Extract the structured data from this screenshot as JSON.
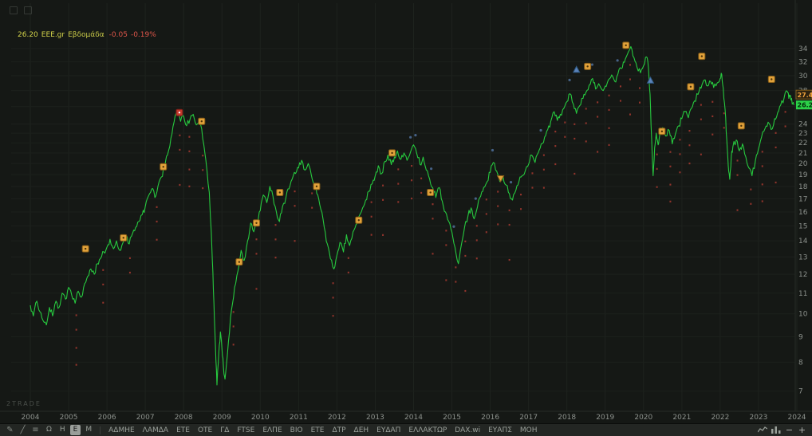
{
  "window": {
    "watermark": "2TRADE"
  },
  "legend": {
    "price": "26.20",
    "symbol": "EEE.gr",
    "timeframe": "Εβδομάδα",
    "change": "-0.05",
    "change_pct": "-0.19%"
  },
  "colors": {
    "background": "#151815",
    "grid": "#1e231e",
    "axis_text": "#8d928d",
    "line": "#27c93f",
    "last_tag_bg": "#2bd148",
    "alert_text": "#f0a23c",
    "sell_tick": "#a83a30",
    "blue_dot": "#5b82b8",
    "event_fill": "#e2a23b",
    "event_alert": "#c4382c"
  },
  "toolbar": {
    "tools": [
      {
        "name": "pencil-icon",
        "glyph": "✎"
      },
      {
        "name": "trendline-icon",
        "glyph": "╱"
      },
      {
        "name": "list-icon",
        "glyph": "≡"
      }
    ],
    "timeframes": [
      {
        "label": "Ω",
        "active": false
      },
      {
        "label": "H",
        "active": false
      },
      {
        "label": "E",
        "active": true
      },
      {
        "label": "M",
        "active": false
      }
    ],
    "tickers": [
      "ΑΔΜΗΕ",
      "ΛΑΜΔΑ",
      "ΕΤΕ",
      "ΟΤΕ",
      "ΓΔ",
      "FTSE",
      "ΕΛΠΕ",
      "ΒΙΟ",
      "ΕΤΕ",
      "ΔΤΡ",
      "ΔΕΗ",
      "ΕΥΔΑΠ",
      "ΕΛΛΑΚΤΩΡ",
      "DAX.wi",
      "ΕΥΑΠΣ",
      "ΜΟΗ"
    ],
    "zoom_out": "−",
    "zoom_in": "+"
  },
  "chart_data": {
    "type": "line",
    "title": "EEE.gr Εβδομάδα",
    "symbol": "EEE.gr",
    "timeframe": "Εβδομάδα",
    "last_price": 26.2,
    "alert_price": 27.44,
    "line_color": "#27c93f",
    "x_axis": {
      "start": 2004,
      "end": 2024,
      "label": ""
    },
    "y_axis": {
      "scale": "log",
      "levels": [
        34,
        32,
        30,
        28,
        26,
        24,
        23,
        22,
        21,
        20,
        19,
        18,
        17,
        16,
        15,
        14,
        13,
        12,
        11,
        10,
        9,
        8,
        7
      ]
    },
    "series": [
      [
        2004.0,
        10.4
      ],
      [
        2004.08,
        9.9
      ],
      [
        2004.17,
        10.6
      ],
      [
        2004.25,
        10.1
      ],
      [
        2004.33,
        9.7
      ],
      [
        2004.42,
        9.5
      ],
      [
        2004.5,
        10.3
      ],
      [
        2004.58,
        9.9
      ],
      [
        2004.67,
        10.6
      ],
      [
        2004.75,
        10.3
      ],
      [
        2004.83,
        11.0
      ],
      [
        2004.92,
        10.7
      ],
      [
        2005.0,
        11.3
      ],
      [
        2005.08,
        10.9
      ],
      [
        2005.17,
        10.5
      ],
      [
        2005.25,
        11.1
      ],
      [
        2005.33,
        10.8
      ],
      [
        2005.42,
        11.5
      ],
      [
        2005.5,
        11.9
      ],
      [
        2005.58,
        12.3
      ],
      [
        2005.67,
        12.0
      ],
      [
        2005.75,
        12.6
      ],
      [
        2005.83,
        12.9
      ],
      [
        2005.92,
        13.3
      ],
      [
        2006.0,
        13.6
      ],
      [
        2006.08,
        14.1
      ],
      [
        2006.17,
        13.5
      ],
      [
        2006.25,
        14.0
      ],
      [
        2006.33,
        13.4
      ],
      [
        2006.42,
        13.9
      ],
      [
        2006.5,
        14.3
      ],
      [
        2006.58,
        13.8
      ],
      [
        2006.67,
        14.5
      ],
      [
        2006.75,
        14.9
      ],
      [
        2006.83,
        15.3
      ],
      [
        2006.92,
        15.8
      ],
      [
        2007.0,
        16.4
      ],
      [
        2007.08,
        17.2
      ],
      [
        2007.17,
        17.8
      ],
      [
        2007.25,
        17.1
      ],
      [
        2007.33,
        18.0
      ],
      [
        2007.42,
        18.8
      ],
      [
        2007.5,
        19.6
      ],
      [
        2007.58,
        20.8
      ],
      [
        2007.67,
        22.5
      ],
      [
        2007.75,
        24.2
      ],
      [
        2007.83,
        25.6
      ],
      [
        2007.92,
        24.3
      ],
      [
        2008.0,
        24.9
      ],
      [
        2008.08,
        23.8
      ],
      [
        2008.17,
        24.6
      ],
      [
        2008.25,
        25.1
      ],
      [
        2008.33,
        23.9
      ],
      [
        2008.42,
        24.6
      ],
      [
        2008.5,
        22.4
      ],
      [
        2008.58,
        20.3
      ],
      [
        2008.67,
        17.5
      ],
      [
        2008.75,
        12.8
      ],
      [
        2008.79,
        10.5
      ],
      [
        2008.83,
        8.6
      ],
      [
        2008.87,
        7.2
      ],
      [
        2008.92,
        8.4
      ],
      [
        2008.96,
        9.2
      ],
      [
        2009.0,
        8.5
      ],
      [
        2009.04,
        7.8
      ],
      [
        2009.08,
        7.4
      ],
      [
        2009.17,
        8.8
      ],
      [
        2009.25,
        10.2
      ],
      [
        2009.33,
        11.3
      ],
      [
        2009.42,
        12.2
      ],
      [
        2009.5,
        13.4
      ],
      [
        2009.58,
        12.8
      ],
      [
        2009.67,
        14.0
      ],
      [
        2009.75,
        15.2
      ],
      [
        2009.83,
        14.6
      ],
      [
        2009.92,
        15.4
      ],
      [
        2010.0,
        16.1
      ],
      [
        2010.08,
        17.3
      ],
      [
        2010.17,
        16.7
      ],
      [
        2010.25,
        18.0
      ],
      [
        2010.33,
        17.2
      ],
      [
        2010.42,
        16.0
      ],
      [
        2010.5,
        15.3
      ],
      [
        2010.58,
        16.4
      ],
      [
        2010.67,
        17.1
      ],
      [
        2010.75,
        17.8
      ],
      [
        2010.83,
        18.6
      ],
      [
        2010.92,
        19.1
      ],
      [
        2011.0,
        19.6
      ],
      [
        2011.08,
        20.3
      ],
      [
        2011.17,
        19.4
      ],
      [
        2011.25,
        20.0
      ],
      [
        2011.33,
        19.0
      ],
      [
        2011.42,
        18.2
      ],
      [
        2011.5,
        17.3
      ],
      [
        2011.58,
        16.2
      ],
      [
        2011.67,
        14.9
      ],
      [
        2011.75,
        13.8
      ],
      [
        2011.83,
        12.9
      ],
      [
        2011.92,
        12.3
      ],
      [
        2012.0,
        13.1
      ],
      [
        2012.08,
        13.9
      ],
      [
        2012.17,
        13.3
      ],
      [
        2012.25,
        14.4
      ],
      [
        2012.33,
        13.7
      ],
      [
        2012.42,
        14.6
      ],
      [
        2012.5,
        15.1
      ],
      [
        2012.58,
        15.7
      ],
      [
        2012.67,
        16.3
      ],
      [
        2012.75,
        16.9
      ],
      [
        2012.83,
        17.6
      ],
      [
        2012.92,
        18.2
      ],
      [
        2013.0,
        18.9
      ],
      [
        2013.08,
        19.8
      ],
      [
        2013.17,
        19.1
      ],
      [
        2013.25,
        20.2
      ],
      [
        2013.33,
        20.8
      ],
      [
        2013.42,
        19.9
      ],
      [
        2013.5,
        20.6
      ],
      [
        2013.58,
        21.2
      ],
      [
        2013.67,
        20.4
      ],
      [
        2013.75,
        21.0
      ],
      [
        2013.83,
        20.3
      ],
      [
        2013.92,
        21.1
      ],
      [
        2014.0,
        21.8
      ],
      [
        2014.08,
        21.0
      ],
      [
        2014.17,
        19.9
      ],
      [
        2014.25,
        20.6
      ],
      [
        2014.33,
        19.4
      ],
      [
        2014.42,
        18.6
      ],
      [
        2014.5,
        17.9
      ],
      [
        2014.58,
        17.1
      ],
      [
        2014.67,
        17.9
      ],
      [
        2014.75,
        16.8
      ],
      [
        2014.83,
        16.0
      ],
      [
        2014.92,
        15.3
      ],
      [
        2015.0,
        14.6
      ],
      [
        2015.08,
        13.6
      ],
      [
        2015.17,
        12.6
      ],
      [
        2015.25,
        13.8
      ],
      [
        2015.33,
        14.9
      ],
      [
        2015.42,
        15.7
      ],
      [
        2015.5,
        16.3
      ],
      [
        2015.58,
        15.5
      ],
      [
        2015.67,
        16.4
      ],
      [
        2015.75,
        17.2
      ],
      [
        2015.83,
        17.9
      ],
      [
        2015.92,
        18.4
      ],
      [
        2016.0,
        19.2
      ],
      [
        2016.08,
        20.1
      ],
      [
        2016.17,
        19.3
      ],
      [
        2016.25,
        18.4
      ],
      [
        2016.33,
        18.9
      ],
      [
        2016.42,
        18.1
      ],
      [
        2016.5,
        17.4
      ],
      [
        2016.58,
        16.9
      ],
      [
        2016.67,
        17.7
      ],
      [
        2016.75,
        18.4
      ],
      [
        2016.83,
        18.9
      ],
      [
        2016.92,
        19.4
      ],
      [
        2017.0,
        19.9
      ],
      [
        2017.08,
        20.8
      ],
      [
        2017.17,
        20.1
      ],
      [
        2017.25,
        21.0
      ],
      [
        2017.33,
        21.9
      ],
      [
        2017.42,
        22.6
      ],
      [
        2017.5,
        23.4
      ],
      [
        2017.58,
        24.3
      ],
      [
        2017.67,
        25.4
      ],
      [
        2017.75,
        24.4
      ],
      [
        2017.83,
        25.1
      ],
      [
        2017.92,
        25.8
      ],
      [
        2018.0,
        26.6
      ],
      [
        2018.08,
        27.6
      ],
      [
        2018.17,
        26.3
      ],
      [
        2018.25,
        25.2
      ],
      [
        2018.33,
        26.1
      ],
      [
        2018.42,
        27.0
      ],
      [
        2018.5,
        27.8
      ],
      [
        2018.58,
        28.7
      ],
      [
        2018.67,
        29.6
      ],
      [
        2018.75,
        28.2
      ],
      [
        2018.83,
        28.9
      ],
      [
        2018.92,
        28.1
      ],
      [
        2019.0,
        28.6
      ],
      [
        2019.08,
        29.4
      ],
      [
        2019.17,
        30.1
      ],
      [
        2019.25,
        29.2
      ],
      [
        2019.33,
        30.2
      ],
      [
        2019.42,
        31.0
      ],
      [
        2019.5,
        31.9
      ],
      [
        2019.58,
        33.1
      ],
      [
        2019.67,
        34.3
      ],
      [
        2019.75,
        32.6
      ],
      [
        2019.83,
        31.2
      ],
      [
        2019.92,
        30.4
      ],
      [
        2020.0,
        31.4
      ],
      [
        2020.08,
        32.7
      ],
      [
        2020.13,
        31.0
      ],
      [
        2020.17,
        27.5
      ],
      [
        2020.21,
        22.5
      ],
      [
        2020.25,
        18.9
      ],
      [
        2020.29,
        21.5
      ],
      [
        2020.33,
        23.0
      ],
      [
        2020.38,
        21.8
      ],
      [
        2020.42,
        22.8
      ],
      [
        2020.5,
        23.6
      ],
      [
        2020.58,
        22.7
      ],
      [
        2020.67,
        23.3
      ],
      [
        2020.75,
        21.9
      ],
      [
        2020.83,
        22.9
      ],
      [
        2020.92,
        23.8
      ],
      [
        2021.0,
        24.6
      ],
      [
        2021.08,
        25.4
      ],
      [
        2021.17,
        24.7
      ],
      [
        2021.25,
        25.8
      ],
      [
        2021.33,
        26.7
      ],
      [
        2021.42,
        27.5
      ],
      [
        2021.5,
        28.3
      ],
      [
        2021.58,
        29.4
      ],
      [
        2021.67,
        28.6
      ],
      [
        2021.75,
        29.2
      ],
      [
        2021.83,
        28.4
      ],
      [
        2021.92,
        29.0
      ],
      [
        2022.0,
        29.6
      ],
      [
        2022.04,
        30.2
      ],
      [
        2022.08,
        28.3
      ],
      [
        2022.13,
        25.6
      ],
      [
        2022.17,
        22.4
      ],
      [
        2022.21,
        19.8
      ],
      [
        2022.25,
        18.6
      ],
      [
        2022.29,
        20.7
      ],
      [
        2022.33,
        21.6
      ],
      [
        2022.42,
        22.3
      ],
      [
        2022.5,
        21.2
      ],
      [
        2022.58,
        21.9
      ],
      [
        2022.67,
        20.6
      ],
      [
        2022.75,
        19.6
      ],
      [
        2022.83,
        18.9
      ],
      [
        2022.92,
        20.3
      ],
      [
        2023.0,
        21.4
      ],
      [
        2023.08,
        22.6
      ],
      [
        2023.17,
        23.5
      ],
      [
        2023.25,
        24.2
      ],
      [
        2023.33,
        23.4
      ],
      [
        2023.42,
        24.6
      ],
      [
        2023.5,
        25.3
      ],
      [
        2023.58,
        26.2
      ],
      [
        2023.67,
        27.1
      ],
      [
        2023.75,
        27.9
      ],
      [
        2023.79,
        27.0
      ],
      [
        2023.83,
        27.4
      ],
      [
        2023.88,
        26.3
      ],
      [
        2023.92,
        26.2
      ]
    ],
    "markers": {
      "events": [
        [
          2005.44,
          13.5,
          "div"
        ],
        [
          2006.43,
          14.2,
          "div"
        ],
        [
          2007.47,
          19.7,
          "div"
        ],
        [
          2007.89,
          25.3,
          "alert"
        ],
        [
          2008.47,
          24.3,
          "div"
        ],
        [
          2009.45,
          12.7,
          "div"
        ],
        [
          2009.9,
          15.2,
          "div"
        ],
        [
          2010.51,
          17.5,
          "div"
        ],
        [
          2011.47,
          18.0,
          "div"
        ],
        [
          2012.57,
          15.4,
          "div"
        ],
        [
          2013.44,
          21.0,
          "div"
        ],
        [
          2014.44,
          17.5,
          "div"
        ],
        [
          2016.27,
          18.7,
          "tri-down"
        ],
        [
          2018.25,
          30.8,
          "tri-up"
        ],
        [
          2018.54,
          31.3,
          "div"
        ],
        [
          2019.54,
          34.5,
          "div"
        ],
        [
          2020.18,
          29.3,
          "tri-up"
        ],
        [
          2020.48,
          23.2,
          "div"
        ],
        [
          2021.23,
          28.5,
          "div"
        ],
        [
          2021.52,
          32.8,
          "div"
        ],
        [
          2022.55,
          23.8,
          "div"
        ],
        [
          2023.34,
          29.5,
          "div"
        ]
      ],
      "sell_ticks": [
        2005.2,
        2005.9,
        2006.6,
        2007.3,
        2007.9,
        2008.15,
        2008.5,
        2009.3,
        2009.9,
        2010.4,
        2010.9,
        2011.35,
        2011.9,
        2012.3,
        2012.9,
        2013.2,
        2013.6,
        2013.95,
        2014.2,
        2014.5,
        2014.85,
        2015.1,
        2015.35,
        2015.65,
        2015.9,
        2016.2,
        2016.5,
        2016.8,
        2017.1,
        2017.4,
        2017.7,
        2017.95,
        2018.2,
        2018.5,
        2018.8,
        2019.1,
        2019.4,
        2019.65,
        2019.9,
        2020.35,
        2020.7,
        2020.95,
        2021.2,
        2021.5,
        2021.8,
        2022.1,
        2022.45,
        2022.8,
        2023.1,
        2023.45,
        2023.7
      ],
      "blue_dots": [
        2013.92,
        2014.05,
        2014.46,
        2015.05,
        2015.62,
        2016.06,
        2016.54,
        2017.32,
        2018.07,
        2018.66,
        2019.32
      ]
    }
  }
}
